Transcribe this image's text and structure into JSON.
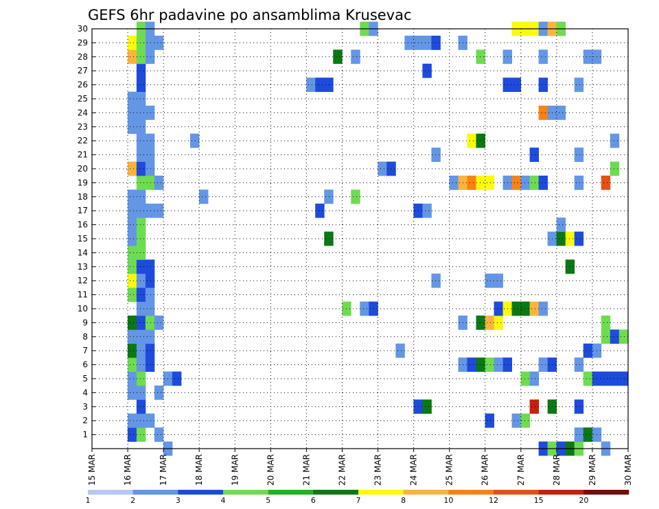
{
  "chart_data": {
    "type": "heatmap",
    "title": "GEFS 6hr padavine po ansamblima Krusevac",
    "y_ticks": [
      "1",
      "2",
      "3",
      "4",
      "5",
      "6",
      "7",
      "8",
      "9",
      "10",
      "11",
      "12",
      "13",
      "14",
      "15",
      "16",
      "17",
      "18",
      "19",
      "20",
      "21",
      "22",
      "23",
      "24",
      "25",
      "26",
      "27",
      "28",
      "29",
      "30"
    ],
    "x_ticks": [
      "15 MAR",
      "16 MAR",
      "17 MAR",
      "18 MAR",
      "19 MAR",
      "20 MAR",
      "21 MAR",
      "22 MAR",
      "23 MAR",
      "24 MAR",
      "25 MAR",
      "26 MAR",
      "27 MAR",
      "28 MAR",
      "29 MAR",
      "30 MAR"
    ],
    "x_range_days": [
      15,
      30
    ],
    "y_range": [
      0,
      30
    ],
    "grid": true,
    "colorbar": {
      "levels": [
        "1",
        "2",
        "3",
        "4",
        "5",
        "6",
        "7",
        "8",
        "10",
        "12",
        "15",
        "20"
      ],
      "colors": [
        "#b4c8f5",
        "#6496e6",
        "#1e4bdc",
        "#6edc50",
        "#1eb41e",
        "#0a7814",
        "#fafa0a",
        "#fab43c",
        "#fa8214",
        "#e65014",
        "#c81e0a",
        "#780a0a"
      ]
    },
    "cells": [
      [
        16.0,
        1,
        2
      ],
      [
        16.25,
        1,
        3
      ],
      [
        16.75,
        1,
        1
      ],
      [
        17.0,
        0,
        1
      ],
      [
        16.0,
        2,
        1
      ],
      [
        16.25,
        2,
        1
      ],
      [
        16.5,
        2,
        1
      ],
      [
        16.25,
        3,
        2
      ],
      [
        16.0,
        4,
        1
      ],
      [
        16.25,
        4,
        1
      ],
      [
        16.75,
        4,
        1
      ],
      [
        16.0,
        5,
        1
      ],
      [
        16.25,
        5,
        3
      ],
      [
        17.0,
        5,
        1
      ],
      [
        17.25,
        5,
        2
      ],
      [
        16.0,
        6,
        3
      ],
      [
        16.25,
        6,
        1
      ],
      [
        16.5,
        6,
        2
      ],
      [
        16.0,
        7,
        5
      ],
      [
        16.25,
        7,
        1
      ],
      [
        16.5,
        7,
        2
      ],
      [
        16.0,
        8,
        1
      ],
      [
        16.25,
        8,
        1
      ],
      [
        16.5,
        8,
        1
      ],
      [
        16.0,
        9,
        5
      ],
      [
        16.25,
        9,
        2
      ],
      [
        16.5,
        9,
        3
      ],
      [
        16.75,
        9,
        1
      ],
      [
        16.25,
        10,
        1
      ],
      [
        16.5,
        10,
        1
      ],
      [
        16.0,
        11,
        3
      ],
      [
        16.25,
        11,
        2
      ],
      [
        16.5,
        11,
        1
      ],
      [
        16.0,
        12,
        6
      ],
      [
        16.25,
        12,
        1
      ],
      [
        16.5,
        12,
        2
      ],
      [
        16.0,
        13,
        3
      ],
      [
        16.25,
        13,
        2
      ],
      [
        16.5,
        13,
        2
      ],
      [
        16.0,
        14,
        3
      ],
      [
        16.25,
        14,
        3
      ],
      [
        16.0,
        15,
        1
      ],
      [
        16.25,
        15,
        3
      ],
      [
        16.0,
        16,
        1
      ],
      [
        16.25,
        16,
        3
      ],
      [
        16.0,
        17,
        1
      ],
      [
        16.25,
        17,
        1
      ],
      [
        16.5,
        17,
        1
      ],
      [
        16.75,
        17,
        1
      ],
      [
        16.0,
        18,
        1
      ],
      [
        16.25,
        18,
        1
      ],
      [
        16.25,
        19,
        3
      ],
      [
        16.5,
        19,
        3
      ],
      [
        16.75,
        19,
        1
      ],
      [
        16.0,
        20,
        7
      ],
      [
        16.25,
        20,
        2
      ],
      [
        16.5,
        20,
        1
      ],
      [
        16.25,
        21,
        1
      ],
      [
        16.5,
        21,
        1
      ],
      [
        16.25,
        22,
        1
      ],
      [
        16.5,
        22,
        1
      ],
      [
        16.0,
        23,
        1
      ],
      [
        16.25,
        23,
        1
      ],
      [
        16.0,
        24,
        1
      ],
      [
        16.25,
        24,
        1
      ],
      [
        16.5,
        24,
        1
      ],
      [
        16.0,
        25,
        1
      ],
      [
        16.25,
        25,
        1
      ],
      [
        16.25,
        26,
        2
      ],
      [
        16.25,
        27,
        2
      ],
      [
        16.0,
        28,
        7
      ],
      [
        16.25,
        28,
        3
      ],
      [
        16.5,
        28,
        1
      ],
      [
        16.0,
        29,
        6
      ],
      [
        16.25,
        29,
        3
      ],
      [
        16.5,
        29,
        1
      ],
      [
        16.75,
        29,
        1
      ],
      [
        16.25,
        30,
        3
      ],
      [
        16.5,
        30,
        1
      ],
      [
        17.75,
        22,
        1
      ],
      [
        18.0,
        18,
        1
      ],
      [
        21.0,
        26,
        1
      ],
      [
        21.25,
        26,
        2
      ],
      [
        21.5,
        26,
        2
      ],
      [
        21.5,
        15,
        5
      ],
      [
        21.5,
        18,
        1
      ],
      [
        21.25,
        17,
        2
      ],
      [
        21.75,
        28,
        5
      ],
      [
        22.0,
        10,
        3
      ],
      [
        22.25,
        18,
        3
      ],
      [
        22.25,
        28,
        1
      ],
      [
        22.5,
        10,
        1
      ],
      [
        22.75,
        10,
        2
      ],
      [
        22.5,
        30,
        3
      ],
      [
        22.75,
        30,
        1
      ],
      [
        23.0,
        20,
        1
      ],
      [
        23.25,
        20,
        2
      ],
      [
        23.5,
        7,
        1
      ],
      [
        23.75,
        29,
        1
      ],
      [
        24.0,
        29,
        1
      ],
      [
        24.25,
        29,
        1
      ],
      [
        24.5,
        29,
        2
      ],
      [
        24.25,
        27,
        2
      ],
      [
        24.0,
        17,
        2
      ],
      [
        24.25,
        17,
        1
      ],
      [
        24.0,
        3,
        2
      ],
      [
        24.25,
        3,
        5
      ],
      [
        24.5,
        21,
        1
      ],
      [
        24.5,
        12,
        1
      ],
      [
        25.0,
        19,
        1
      ],
      [
        25.25,
        19,
        7
      ],
      [
        25.5,
        19,
        8
      ],
      [
        25.75,
        19,
        6
      ],
      [
        26.0,
        19,
        6
      ],
      [
        25.25,
        29,
        1
      ],
      [
        25.25,
        9,
        1
      ],
      [
        25.25,
        6,
        1
      ],
      [
        25.5,
        6,
        2
      ],
      [
        25.75,
        6,
        5
      ],
      [
        26.0,
        6,
        3
      ],
      [
        26.25,
        6,
        1
      ],
      [
        26.5,
        6,
        2
      ],
      [
        25.5,
        22,
        6
      ],
      [
        25.75,
        22,
        5
      ],
      [
        25.75,
        9,
        5
      ],
      [
        26.0,
        9,
        7
      ],
      [
        26.25,
        9,
        6
      ],
      [
        25.75,
        28,
        3
      ],
      [
        26.0,
        2,
        2
      ],
      [
        26.0,
        12,
        1
      ],
      [
        26.25,
        12,
        1
      ],
      [
        26.25,
        10,
        2
      ],
      [
        26.5,
        10,
        6
      ],
      [
        26.75,
        10,
        5
      ],
      [
        27.0,
        10,
        5
      ],
      [
        27.25,
        10,
        7
      ],
      [
        27.5,
        10,
        1
      ],
      [
        26.5,
        19,
        1
      ],
      [
        26.75,
        19,
        8
      ],
      [
        27.0,
        19,
        1
      ],
      [
        27.25,
        19,
        3
      ],
      [
        27.5,
        19,
        2
      ],
      [
        26.5,
        28,
        1
      ],
      [
        26.5,
        26,
        2
      ],
      [
        26.75,
        26,
        2
      ],
      [
        26.75,
        30,
        6
      ],
      [
        27.0,
        30,
        6
      ],
      [
        27.25,
        30,
        6
      ],
      [
        27.5,
        30,
        1
      ],
      [
        27.75,
        30,
        7
      ],
      [
        28.0,
        30,
        3
      ],
      [
        26.75,
        2,
        1
      ],
      [
        27.0,
        2,
        3
      ],
      [
        27.0,
        5,
        3
      ],
      [
        27.25,
        5,
        1
      ],
      [
        27.25,
        3,
        10
      ],
      [
        27.25,
        21,
        2
      ],
      [
        27.5,
        24,
        8
      ],
      [
        27.75,
        24,
        1
      ],
      [
        28.0,
        24,
        1
      ],
      [
        27.5,
        28,
        1
      ],
      [
        27.5,
        26,
        2
      ],
      [
        27.5,
        6,
        1
      ],
      [
        27.75,
        6,
        2
      ],
      [
        27.5,
        0,
        2
      ],
      [
        27.75,
        0,
        3
      ],
      [
        28.0,
        0,
        2
      ],
      [
        28.25,
        0,
        5
      ],
      [
        28.5,
        0,
        3
      ],
      [
        29.25,
        0,
        1
      ],
      [
        27.75,
        3,
        5
      ],
      [
        27.75,
        15,
        1
      ],
      [
        28.0,
        15,
        5
      ],
      [
        28.25,
        15,
        6
      ],
      [
        28.5,
        15,
        2
      ],
      [
        28.0,
        16,
        1
      ],
      [
        28.25,
        13,
        5
      ],
      [
        28.5,
        26,
        1
      ],
      [
        28.5,
        21,
        1
      ],
      [
        28.5,
        19,
        1
      ],
      [
        28.5,
        6,
        1
      ],
      [
        28.5,
        3,
        2
      ],
      [
        28.5,
        1,
        1
      ],
      [
        28.75,
        1,
        5
      ],
      [
        29.0,
        1,
        1
      ],
      [
        28.75,
        5,
        3
      ],
      [
        29.0,
        5,
        2
      ],
      [
        28.75,
        7,
        2
      ],
      [
        29.0,
        7,
        1
      ],
      [
        28.75,
        28,
        1
      ],
      [
        29.0,
        28,
        1
      ],
      [
        29.25,
        19,
        9
      ],
      [
        29.25,
        9,
        3
      ],
      [
        29.25,
        8,
        3
      ],
      [
        29.5,
        8,
        2
      ],
      [
        29.75,
        8,
        3
      ],
      [
        29.25,
        5,
        2
      ],
      [
        29.5,
        5,
        2
      ],
      [
        29.75,
        5,
        2
      ],
      [
        29.5,
        20,
        3
      ],
      [
        29.5,
        22,
        1
      ]
    ]
  }
}
